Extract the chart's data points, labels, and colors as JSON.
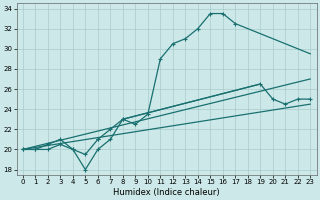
{
  "xlabel": "Humidex (Indice chaleur)",
  "background_color": "#cce8e8",
  "grid_color": "#aacccc",
  "line_color": "#1a7070",
  "xlim": [
    -0.5,
    23.5
  ],
  "ylim": [
    17.5,
    34.5
  ],
  "yticks": [
    18,
    20,
    22,
    24,
    26,
    28,
    30,
    32,
    34
  ],
  "xticks": [
    0,
    1,
    2,
    3,
    4,
    5,
    6,
    7,
    8,
    9,
    10,
    11,
    12,
    13,
    14,
    15,
    16,
    17,
    18,
    19,
    20,
    21,
    22,
    23
  ],
  "curve1_x": [
    0,
    1,
    2,
    3,
    4,
    5,
    6,
    7,
    8,
    9,
    10,
    11,
    12,
    13,
    14,
    15,
    16,
    17
  ],
  "curve1_y": [
    20,
    20,
    20,
    20.5,
    20,
    18,
    20,
    21,
    23,
    22.5,
    23.5,
    29,
    30.5,
    31,
    32,
    33.5,
    33.5,
    32.5
  ],
  "curve2a_x": [
    0,
    1,
    2,
    3,
    4,
    5,
    6
  ],
  "curve2a_y": [
    20,
    20,
    20.5,
    21,
    20,
    19.5,
    21
  ],
  "curve2b_x": [
    6,
    7,
    8,
    19,
    20,
    21,
    22,
    23
  ],
  "curve2b_y": [
    21,
    22,
    23,
    26.5,
    25,
    24.5,
    25,
    25
  ],
  "line3_x": [
    0,
    23
  ],
  "line3_y": [
    20,
    24.5
  ],
  "line4_x": [
    0,
    23
  ],
  "line4_y": [
    20,
    27
  ],
  "line5_x": [
    17,
    23
  ],
  "line5_y": [
    32.5,
    29.5
  ]
}
